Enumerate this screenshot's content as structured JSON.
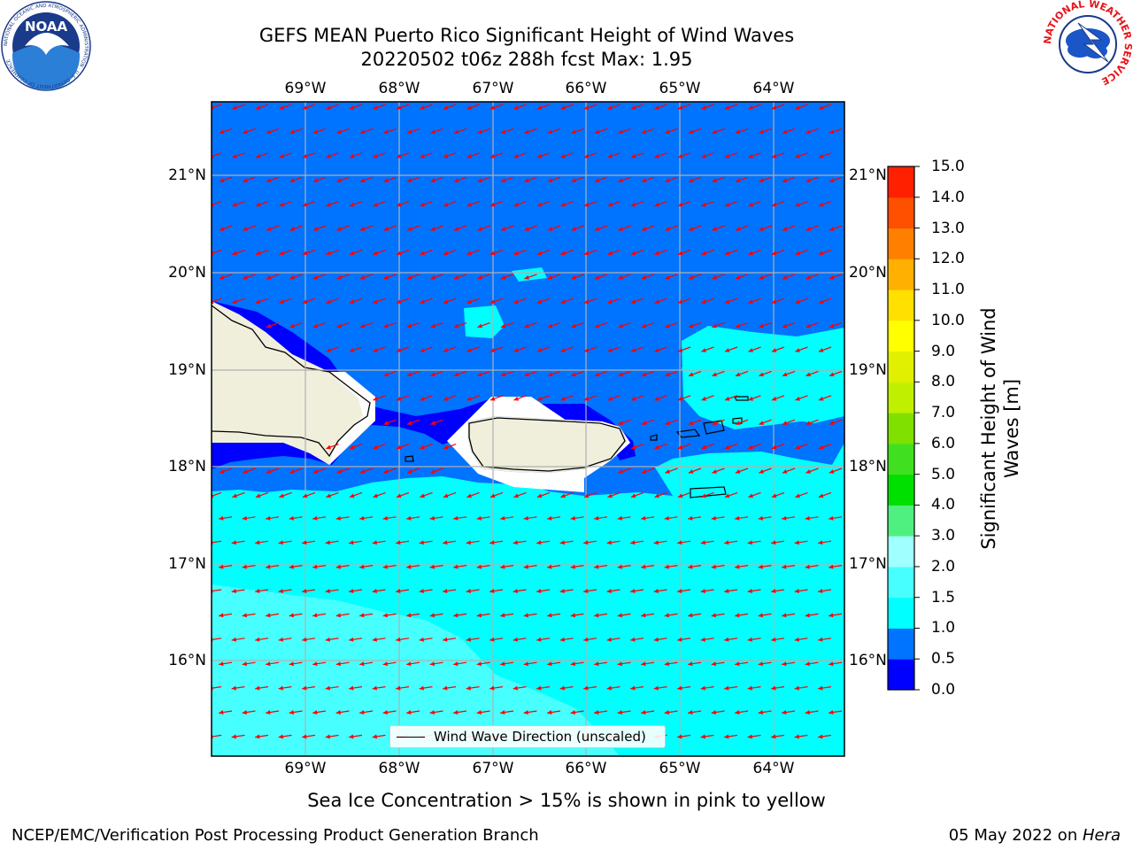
{
  "header": {
    "title_line1": "GEFS MEAN Puerto Rico Significant Height of Wind Waves",
    "title_line2": "20220502 t06z 288h fcst   Max: 1.95"
  },
  "map": {
    "lon_labels": [
      "69°W",
      "68°W",
      "67°W",
      "66°W",
      "65°W",
      "64°W"
    ],
    "lat_labels": [
      "21°N",
      "20°N",
      "19°N",
      "18°N",
      "17°N",
      "16°N"
    ],
    "legend_label": "Wind Wave Direction (unscaled)",
    "colors": {
      "land": "#f0efdc",
      "band_0_0_5": "#0000ff",
      "band_0_5_1_0": "#0073ff",
      "band_1_0_1_5": "#00ffff",
      "band_1_5_2_0": "#48ffff",
      "arrow": "#ff0000",
      "grid": "#b0b0b0"
    }
  },
  "colorbar": {
    "title_line1": "Significant Height of Wind",
    "title_line2": "Waves [m]",
    "ticks": [
      "0.0",
      "0.5",
      "1.0",
      "1.5",
      "2.0",
      "3.0",
      "4.0",
      "5.0",
      "6.0",
      "7.0",
      "8.0",
      "9.0",
      "10.0",
      "11.0",
      "12.0",
      "13.0",
      "14.0",
      "15.0"
    ],
    "colors": [
      "#0000ff",
      "#0073ff",
      "#00ffff",
      "#48ffff",
      "#a0ffff",
      "#50f080",
      "#00e000",
      "#40e020",
      "#80e000",
      "#c0f000",
      "#e0f000",
      "#ffff00",
      "#ffe000",
      "#ffb000",
      "#ff8000",
      "#ff5000",
      "#ff2000",
      "#ff0000"
    ]
  },
  "footer": {
    "note": "Sea Ice Concentration > 15% is shown in pink to yellow",
    "left": "NCEP/EMC/Verification Post Processing Product Generation Branch",
    "right_prefix": "05 May 2022 on ",
    "right_host": "Hera"
  },
  "logos": {
    "noaa_text": "NOAA",
    "noaa_ring": "NATIONAL OCEANIC AND ATMOSPHERIC ADMINISTRATION · U.S. DEPARTMENT OF COMMERCE",
    "nws_ring": "NATIONAL WEATHER SERVICE"
  }
}
